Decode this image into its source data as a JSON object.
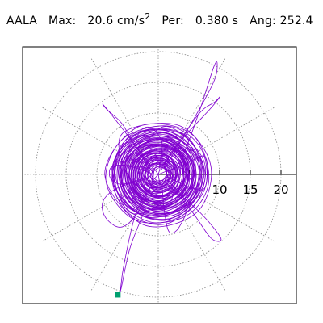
{
  "header": {
    "station": "AALA",
    "max_label": "Max:",
    "max_value": "20.6 cm/s",
    "max_unit_power": "2",
    "period_label": "Per:",
    "period_value": "0.380 s",
    "angle_label": "Ang:",
    "angle_value": "252.4"
  },
  "colors": {
    "trace": "#8000d0",
    "grid": "#888888",
    "marker": "#00a070",
    "axis": "#000000"
  },
  "chart_data": {
    "type": "polar-hodogram",
    "radial_range": [
      0,
      22
    ],
    "radial_ticks": [
      5,
      10,
      15,
      20
    ],
    "radial_tick_labels": [
      "10",
      "15",
      "20"
    ],
    "spoke_interval_deg": 30,
    "grid": true,
    "max_amplitude": 20.6,
    "peak_angle_deg": 252.4,
    "end_marker": "square",
    "trace_path": [
      [
        0,
        0
      ],
      [
        1.5,
        0.8
      ],
      [
        -1.2,
        1.4
      ],
      [
        -2.0,
        -0.6
      ],
      [
        0.8,
        -1.9
      ],
      [
        2.4,
        0.4
      ],
      [
        0.6,
        2.6
      ],
      [
        -2.8,
        1.0
      ],
      [
        -2.4,
        -2.1
      ],
      [
        1.2,
        -2.8
      ],
      [
        3.3,
        -0.3
      ],
      [
        1.4,
        3.1
      ],
      [
        -3.0,
        2.8
      ],
      [
        -3.6,
        -1.0
      ],
      [
        -0.4,
        -3.8
      ],
      [
        3.4,
        -2.0
      ],
      [
        3.6,
        2.0
      ],
      [
        0.2,
        4.2
      ],
      [
        -4.2,
        1.6
      ],
      [
        -3.2,
        -3.2
      ],
      [
        1.0,
        -4.4
      ],
      [
        4.4,
        -0.6
      ],
      [
        2.8,
        3.8
      ],
      [
        -1.6,
        4.6
      ],
      [
        -5.0,
        0.4
      ],
      [
        -3.0,
        -4.4
      ],
      [
        1.8,
        -5.0
      ],
      [
        5.0,
        -1.6
      ],
      [
        3.6,
        3.6
      ],
      [
        -0.8,
        5.2
      ],
      [
        -5.2,
        2.4
      ],
      [
        -4.6,
        -2.8
      ],
      [
        0.0,
        -5.4
      ],
      [
        4.8,
        -3.0
      ],
      [
        5.6,
        1.4
      ],
      [
        2.0,
        5.6
      ],
      [
        -3.6,
        4.8
      ],
      [
        -6.0,
        -0.8
      ],
      [
        -2.6,
        -5.6
      ],
      [
        2.8,
        -5.8
      ],
      [
        6.2,
        -0.2
      ],
      [
        3.0,
        5.4
      ],
      [
        -2.0,
        6.0
      ],
      [
        -6.4,
        2.2
      ],
      [
        -5.0,
        -4.0
      ],
      [
        0.6,
        -6.6
      ],
      [
        6.0,
        -3.4
      ],
      [
        6.6,
        2.6
      ],
      [
        1.0,
        6.8
      ],
      [
        -4.8,
        5.2
      ],
      [
        -7.0,
        0.0
      ],
      [
        -3.8,
        -6.0
      ],
      [
        2.6,
        -7.0
      ],
      [
        7.0,
        -1.8
      ],
      [
        5.0,
        5.0
      ],
      [
        -0.6,
        7.2
      ],
      [
        -6.6,
        3.4
      ],
      [
        -6.0,
        -4.2
      ],
      [
        1.6,
        -7.4
      ],
      [
        7.4,
        -0.6
      ],
      [
        4.2,
        6.4
      ],
      [
        -2.8,
        7.0
      ],
      [
        -7.4,
        1.4
      ],
      [
        -4.6,
        -6.2
      ],
      [
        1.2,
        -4.0
      ],
      [
        3.0,
        1.2
      ],
      [
        -1.0,
        2.6
      ],
      [
        -2.6,
        -0.4
      ],
      [
        -0.2,
        -2.2
      ],
      [
        2.0,
        -0.8
      ],
      [
        1.0,
        1.6
      ],
      [
        -1.2,
        0.6
      ]
    ],
    "excursions": [
      [
        [
          1.0,
          1.0
        ],
        [
          5.2,
          8.0
        ],
        [
          9.0,
          15.0
        ],
        [
          9.6,
          18.0
        ],
        [
          9.0,
          17.4
        ],
        [
          6.6,
          10.0
        ],
        [
          3.6,
          2.2
        ],
        [
          1.2,
          0.4
        ]
      ],
      [
        [
          0.6,
          1.2
        ],
        [
          6.4,
          9.6
        ],
        [
          9.2,
          11.8
        ],
        [
          10.0,
          12.6
        ],
        [
          8.4,
          10.6
        ],
        [
          3.6,
          5.4
        ],
        [
          0.4,
          0.6
        ]
      ],
      [
        [
          -1.0,
          1.2
        ],
        [
          -7.2,
          9.2
        ],
        [
          -9.0,
          11.4
        ],
        [
          -8.4,
          10.6
        ],
        [
          -6.0,
          8.4
        ],
        [
          -4.2,
          5.4
        ],
        [
          -0.8,
          0.2
        ]
      ],
      [
        [
          -0.6,
          -1.0
        ],
        [
          -3.6,
          -6.2
        ],
        [
          -5.6,
          -14.8
        ],
        [
          -6.2,
          -19.0
        ],
        [
          -6.6,
          -19.6
        ],
        [
          -6.1,
          -18.8
        ],
        [
          -4.6,
          -12.0
        ],
        [
          -2.0,
          -5.4
        ]
      ],
      [
        [
          1.0,
          -1.2
        ],
        [
          6.8,
          -6.2
        ],
        [
          10.2,
          -10.4
        ],
        [
          8.6,
          -10.4
        ],
        [
          5.6,
          -6.2
        ],
        [
          2.0,
          -2.0
        ]
      ],
      [
        [
          1.4,
          -0.8
        ],
        [
          4.6,
          -4.8
        ],
        [
          3.4,
          -8.6
        ],
        [
          1.8,
          -9.4
        ],
        [
          1.0,
          -6.0
        ],
        [
          0.6,
          -1.6
        ]
      ],
      [
        [
          -1.4,
          -0.6
        ],
        [
          -6.6,
          -2.2
        ],
        [
          -9.0,
          -4.4
        ],
        [
          -8.6,
          -7.0
        ],
        [
          -6.2,
          -8.6
        ],
        [
          -3.6,
          -6.6
        ],
        [
          -1.0,
          -1.6
        ]
      ],
      [
        [
          1.2,
          0.4
        ],
        [
          4.6,
          1.8
        ],
        [
          7.4,
          3.0
        ],
        [
          8.0,
          0.8
        ],
        [
          7.4,
          -2.4
        ],
        [
          4.4,
          -1.8
        ],
        [
          1.6,
          -0.4
        ]
      ],
      [
        [
          -1.2,
          0.2
        ],
        [
          -5.0,
          1.4
        ],
        [
          -7.6,
          1.2
        ],
        [
          -7.8,
          -0.6
        ],
        [
          -6.0,
          -1.6
        ],
        [
          -2.2,
          -0.6
        ]
      ],
      [
        [
          0.2,
          1.4
        ],
        [
          0.6,
          5.2
        ],
        [
          -1.2,
          7.6
        ],
        [
          -3.0,
          7.0
        ],
        [
          -3.6,
          4.0
        ],
        [
          -1.0,
          1.2
        ]
      ]
    ]
  }
}
